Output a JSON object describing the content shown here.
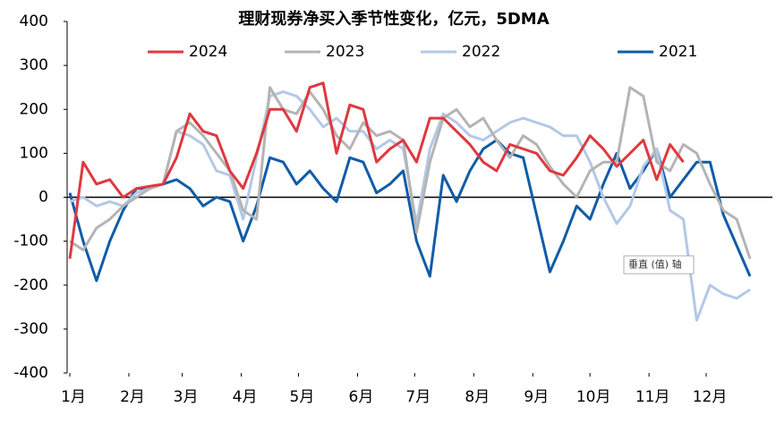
{
  "chart_data": {
    "type": "line",
    "title": "理财现券净买入季节性变化，亿元，5DMA",
    "x": [
      0,
      7,
      14,
      21,
      28,
      35,
      42,
      49,
      56,
      63,
      70,
      77,
      84,
      91,
      98,
      105,
      112,
      119,
      126,
      133,
      140,
      147,
      154,
      161,
      168,
      175,
      182,
      189,
      196,
      203,
      210,
      217,
      224,
      231,
      238,
      245,
      252,
      259,
      266,
      273,
      280,
      287,
      294,
      301,
      308,
      315,
      322,
      329,
      336,
      343,
      350,
      357
    ],
    "xlim": [
      0,
      365
    ],
    "xticks": [
      {
        "value": 0,
        "label": "1月"
      },
      {
        "value": 31,
        "label": "2月"
      },
      {
        "value": 59,
        "label": "3月"
      },
      {
        "value": 90,
        "label": "4月"
      },
      {
        "value": 120,
        "label": "5月"
      },
      {
        "value": 151,
        "label": "6月"
      },
      {
        "value": 181,
        "label": "7月"
      },
      {
        "value": 212,
        "label": "8月"
      },
      {
        "value": 243,
        "label": "9月"
      },
      {
        "value": 273,
        "label": "10月"
      },
      {
        "value": 304,
        "label": "11月"
      },
      {
        "value": 334,
        "label": "12月"
      }
    ],
    "ylim": [
      -400,
      400
    ],
    "yticks": [
      -400,
      -300,
      -200,
      -100,
      0,
      100,
      200,
      300,
      400
    ],
    "grid": false,
    "legend": "top",
    "tooltip": "垂直 (值) 轴",
    "series": [
      {
        "name": "2024",
        "color": "#e0383f",
        "values": [
          -140,
          80,
          30,
          40,
          0,
          20,
          25,
          30,
          90,
          190,
          150,
          140,
          60,
          20,
          100,
          200,
          200,
          150,
          250,
          260,
          100,
          210,
          200,
          80,
          110,
          130,
          80,
          180,
          180,
          150,
          120,
          80,
          60,
          120,
          110,
          100,
          60,
          50,
          90,
          140,
          110,
          70,
          100,
          130,
          40,
          120,
          80,
          null,
          null,
          null,
          null,
          null
        ]
      },
      {
        "name": "2023",
        "color": "#b4b4b4",
        "values": [
          -100,
          -120,
          -70,
          -50,
          -20,
          0,
          20,
          30,
          150,
          170,
          140,
          100,
          60,
          -30,
          -50,
          250,
          200,
          190,
          240,
          200,
          140,
          110,
          170,
          140,
          150,
          130,
          -80,
          80,
          180,
          200,
          160,
          180,
          130,
          90,
          140,
          120,
          70,
          30,
          0,
          60,
          80,
          80,
          250,
          230,
          80,
          60,
          120,
          100,
          30,
          -30,
          -50,
          -140
        ]
      },
      {
        "name": "2022",
        "color": "#b4c8e6",
        "values": [
          -10,
          0,
          -20,
          -10,
          -20,
          10,
          20,
          30,
          150,
          140,
          120,
          60,
          50,
          -50,
          90,
          230,
          240,
          230,
          200,
          160,
          180,
          150,
          150,
          110,
          130,
          110,
          -60,
          110,
          190,
          170,
          140,
          130,
          150,
          170,
          180,
          170,
          160,
          140,
          140,
          80,
          0,
          -60,
          -20,
          70,
          110,
          -30,
          -50,
          -280,
          -200,
          -220,
          -230,
          -210
        ]
      },
      {
        "name": "2021",
        "color": "#0f5ca8",
        "values": [
          10,
          -100,
          -190,
          -100,
          -30,
          20,
          20,
          30,
          40,
          20,
          -20,
          0,
          -10,
          -100,
          -20,
          90,
          80,
          30,
          60,
          20,
          -10,
          90,
          80,
          10,
          30,
          60,
          -100,
          -180,
          50,
          -10,
          60,
          110,
          130,
          100,
          90,
          -40,
          -170,
          -100,
          -20,
          -50,
          30,
          100,
          20,
          60,
          110,
          0,
          40,
          80,
          80,
          -40,
          -110,
          -180
        ]
      }
    ]
  }
}
